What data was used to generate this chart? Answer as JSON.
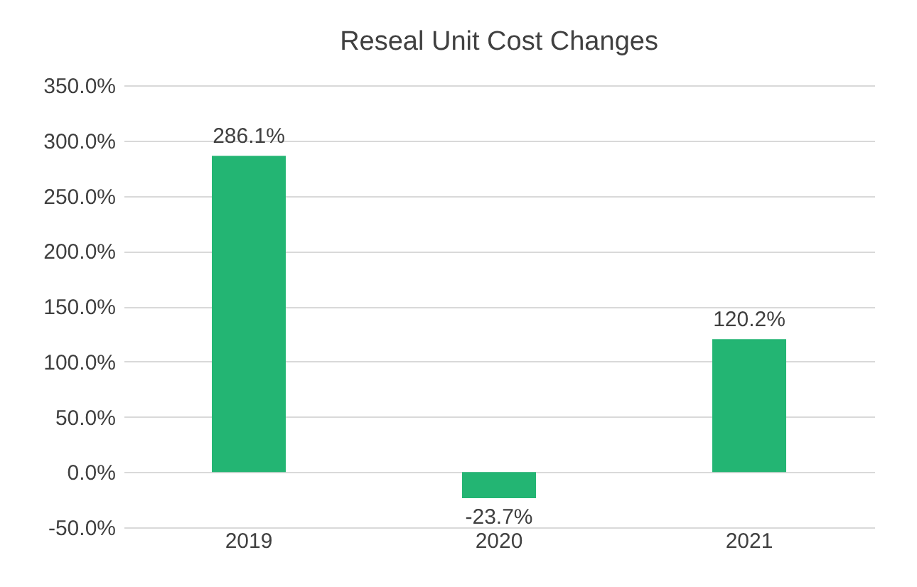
{
  "chart_data": {
    "type": "bar",
    "title": "Reseal Unit Cost Changes",
    "categories": [
      "2019",
      "2020",
      "2021"
    ],
    "values": [
      286.1,
      -23.7,
      120.2
    ],
    "value_labels": [
      "286.1%",
      "-23.7%",
      "120.2%"
    ],
    "color": "#23b573",
    "ylim": [
      -50,
      350
    ],
    "yticks": [
      {
        "value": -50,
        "label": "-50.0%"
      },
      {
        "value": 0,
        "label": "0.0%"
      },
      {
        "value": 50,
        "label": "50.0%"
      },
      {
        "value": 100,
        "label": "100.0%"
      },
      {
        "value": 150,
        "label": "150.0%"
      },
      {
        "value": 200,
        "label": "200.0%"
      },
      {
        "value": 250,
        "label": "250.0%"
      },
      {
        "value": 300,
        "label": "300.0%"
      },
      {
        "value": 350,
        "label": "350.0%"
      }
    ],
    "grid": "y"
  }
}
